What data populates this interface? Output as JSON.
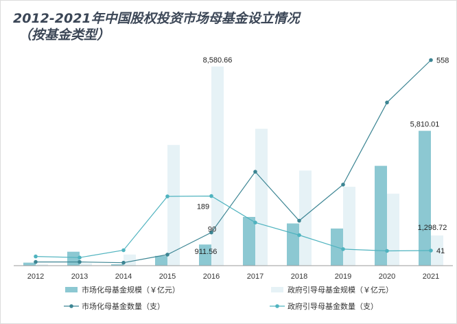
{
  "title_line1": "2012-2021年中国股权投资市场母基金设立情况",
  "title_line2": "（按基金类型）",
  "colors": {
    "market_bar": "#8cc8d2",
    "gov_bar": "#e6f2f6",
    "market_line": "#3c8593",
    "gov_line": "#4fb3bf",
    "title": "#3b4656"
  },
  "chart_data": {
    "type": "bar",
    "categories": [
      "2012",
      "2013",
      "2014",
      "2015",
      "2016",
      "2017",
      "2018",
      "2019",
      "2020",
      "2021"
    ],
    "bar_axis": {
      "range": [
        0,
        9200
      ],
      "visible": false
    },
    "line_axis": {
      "range": [
        0,
        600
      ],
      "visible": false
    },
    "grid": false,
    "legend_position": "bottom",
    "series": [
      {
        "name": "市场化母基金规模（￥亿元）",
        "type": "bar",
        "axis": "bar",
        "values": [
          130,
          600,
          60,
          420,
          911.56,
          2100,
          1820,
          1600,
          4300,
          5810.01
        ]
      },
      {
        "name": "政府引导母基金规模（￥亿元）",
        "type": "bar",
        "axis": "bar",
        "values": [
          60,
          100,
          480,
          5200,
          8580.66,
          5900,
          4100,
          3400,
          3100,
          1298.72
        ]
      },
      {
        "name": "市场化母基金数量（支）",
        "type": "line",
        "axis": "line",
        "values": [
          10,
          10,
          8,
          30,
          90,
          255,
          122,
          220,
          443,
          558
        ]
      },
      {
        "name": "政府引导母基金数量（支）",
        "type": "line",
        "axis": "line",
        "values": [
          25,
          22,
          42,
          188,
          189,
          117,
          83,
          45,
          40,
          41
        ]
      }
    ],
    "data_labels": [
      {
        "series": 1,
        "index": 4,
        "text": "8,580.66"
      },
      {
        "series": 0,
        "index": 9,
        "text": "5,810.01"
      },
      {
        "series": 0,
        "index": 4,
        "text": "911.56"
      },
      {
        "series": 1,
        "index": 9,
        "text": "1,298.72"
      },
      {
        "series": 2,
        "index": 9,
        "text": "558"
      },
      {
        "series": 2,
        "index": 4,
        "text": "90"
      },
      {
        "series": 3,
        "index": 4,
        "text": "189"
      },
      {
        "series": 3,
        "index": 9,
        "text": "41"
      }
    ]
  }
}
